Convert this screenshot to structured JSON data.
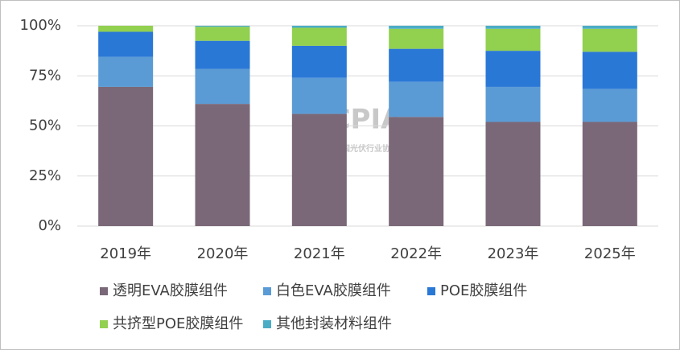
{
  "chart_data": {
    "type": "stacked_bar",
    "watermark": [
      "CPIA",
      "中国光伏行业协会"
    ],
    "categories": [
      "2019年",
      "2020年",
      "2021年",
      "2022年",
      "2023年",
      "2025年"
    ],
    "series": [
      {
        "name": "透明EVA胶膜组件",
        "color": "#7a6878",
        "values": [
          69.5,
          61,
          56,
          54.5,
          52,
          52
        ]
      },
      {
        "name": "白色EVA胶膜组件",
        "color": "#5b9bd5",
        "values": [
          15,
          17.5,
          18,
          17.5,
          17.5,
          16.5
        ]
      },
      {
        "name": "POE胶膜组件",
        "color": "#2a78d6",
        "values": [
          12.5,
          14,
          16,
          16.5,
          18,
          18.5
        ]
      },
      {
        "name": "共挤型POE胶膜组件",
        "color": "#92d050",
        "values": [
          3,
          7,
          9,
          10,
          11,
          11.5
        ]
      },
      {
        "name": "其他封装材料组件",
        "color": "#4bacc6",
        "values": [
          0,
          0.5,
          1,
          1.5,
          1.5,
          1.5
        ]
      }
    ],
    "ylim": [
      0,
      100
    ],
    "yticks": [
      {
        "value": 0,
        "label": "0%"
      },
      {
        "value": 25,
        "label": "25%"
      },
      {
        "value": 50,
        "label": "50%"
      },
      {
        "value": 75,
        "label": "75%"
      },
      {
        "value": 100,
        "label": "100%"
      }
    ],
    "grid": true
  }
}
